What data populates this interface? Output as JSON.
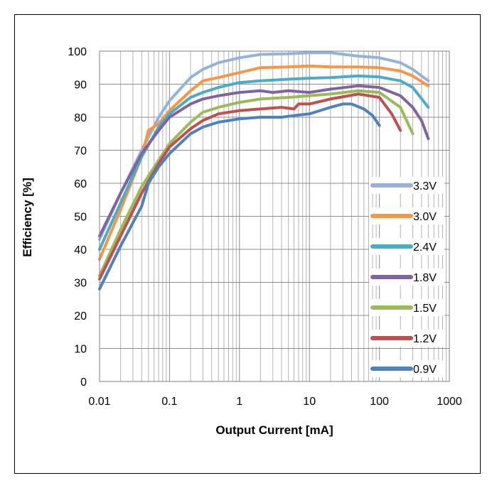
{
  "chart_data": {
    "type": "line",
    "title": "",
    "xlabel": "Output Current [mA]",
    "ylabel": "Efficiency [%]",
    "xscale": "log",
    "xlim": [
      0.01,
      1000
    ],
    "ylim": [
      0,
      100
    ],
    "x_ticks": [
      "0.01",
      "0.1",
      "1",
      "10",
      "100",
      "1000"
    ],
    "y_ticks": [
      "0",
      "10",
      "20",
      "30",
      "40",
      "50",
      "60",
      "70",
      "80",
      "90",
      "100"
    ],
    "grid": true,
    "legend_position": "right-inside",
    "series": [
      {
        "name": "3.3V",
        "color": "#95B3D7",
        "points": [
          [
            0.01,
            43
          ],
          [
            0.02,
            57
          ],
          [
            0.04,
            70
          ],
          [
            0.07,
            80
          ],
          [
            0.1,
            85
          ],
          [
            0.2,
            92
          ],
          [
            0.3,
            94.5
          ],
          [
            0.5,
            96.5
          ],
          [
            1,
            98
          ],
          [
            2,
            99
          ],
          [
            5,
            99.2
          ],
          [
            10,
            99.5
          ],
          [
            20,
            99.5
          ],
          [
            50,
            98.5
          ],
          [
            100,
            98
          ],
          [
            200,
            96.5
          ],
          [
            300,
            94.5
          ],
          [
            500,
            91
          ]
        ]
      },
      {
        "name": "3.0V",
        "color": "#F79646",
        "points": [
          [
            0.01,
            37
          ],
          [
            0.02,
            52
          ],
          [
            0.04,
            68
          ],
          [
            0.05,
            76
          ],
          [
            0.07,
            78
          ],
          [
            0.1,
            82
          ],
          [
            0.2,
            88
          ],
          [
            0.3,
            91
          ],
          [
            0.5,
            92
          ],
          [
            1,
            93.5
          ],
          [
            2,
            95
          ],
          [
            5,
            95.2
          ],
          [
            10,
            95.5
          ],
          [
            20,
            95.2
          ],
          [
            50,
            95.2
          ],
          [
            100,
            95
          ],
          [
            200,
            94
          ],
          [
            300,
            92.5
          ],
          [
            500,
            89.5
          ]
        ]
      },
      {
        "name": "2.4V",
        "color": "#4BACC6",
        "points": [
          [
            0.01,
            40
          ],
          [
            0.02,
            54
          ],
          [
            0.04,
            68
          ],
          [
            0.07,
            77
          ],
          [
            0.1,
            81
          ],
          [
            0.2,
            86
          ],
          [
            0.3,
            87.5
          ],
          [
            0.5,
            89
          ],
          [
            1,
            90.5
          ],
          [
            2,
            91
          ],
          [
            5,
            91.5
          ],
          [
            10,
            91.8
          ],
          [
            20,
            92
          ],
          [
            50,
            92.5
          ],
          [
            100,
            92.2
          ],
          [
            200,
            91
          ],
          [
            300,
            89
          ],
          [
            500,
            83
          ]
        ]
      },
      {
        "name": "1.8V",
        "color": "#8064A2",
        "points": [
          [
            0.01,
            44
          ],
          [
            0.02,
            57
          ],
          [
            0.04,
            69
          ],
          [
            0.07,
            76
          ],
          [
            0.1,
            80
          ],
          [
            0.2,
            84
          ],
          [
            0.3,
            85.5
          ],
          [
            0.5,
            86.5
          ],
          [
            1,
            87.5
          ],
          [
            2,
            88
          ],
          [
            3,
            87.5
          ],
          [
            5,
            88
          ],
          [
            10,
            87.5
          ],
          [
            20,
            88.5
          ],
          [
            50,
            89.5
          ],
          [
            100,
            89
          ],
          [
            200,
            86.5
          ],
          [
            300,
            83
          ],
          [
            400,
            79
          ],
          [
            500,
            73.5
          ]
        ]
      },
      {
        "name": "1.5V",
        "color": "#9BBB59",
        "points": [
          [
            0.01,
            32
          ],
          [
            0.02,
            46
          ],
          [
            0.04,
            59
          ],
          [
            0.07,
            67
          ],
          [
            0.1,
            72
          ],
          [
            0.2,
            78.5
          ],
          [
            0.3,
            81.5
          ],
          [
            0.5,
            83
          ],
          [
            1,
            84.5
          ],
          [
            2,
            85.5
          ],
          [
            5,
            86
          ],
          [
            10,
            86.5
          ],
          [
            20,
            87
          ],
          [
            50,
            88
          ],
          [
            100,
            87.5
          ],
          [
            200,
            83
          ],
          [
            300,
            75
          ]
        ]
      },
      {
        "name": "1.2V",
        "color": "#C0504D",
        "points": [
          [
            0.01,
            31
          ],
          [
            0.02,
            44
          ],
          [
            0.04,
            57
          ],
          [
            0.07,
            66
          ],
          [
            0.1,
            71
          ],
          [
            0.2,
            76.5
          ],
          [
            0.3,
            79
          ],
          [
            0.5,
            81
          ],
          [
            1,
            82
          ],
          [
            2,
            82.5
          ],
          [
            4,
            83
          ],
          [
            6,
            82.5
          ],
          [
            7,
            84
          ],
          [
            10,
            84
          ],
          [
            20,
            85.5
          ],
          [
            50,
            87
          ],
          [
            100,
            86
          ],
          [
            150,
            81
          ],
          [
            200,
            76
          ]
        ]
      },
      {
        "name": "0.9V",
        "color": "#4F81BD",
        "points": [
          [
            0.01,
            28
          ],
          [
            0.02,
            41
          ],
          [
            0.04,
            53
          ],
          [
            0.05,
            60
          ],
          [
            0.07,
            65
          ],
          [
            0.1,
            69
          ],
          [
            0.2,
            75
          ],
          [
            0.3,
            77
          ],
          [
            0.5,
            78.5
          ],
          [
            1,
            79.5
          ],
          [
            2,
            80
          ],
          [
            4,
            80
          ],
          [
            6,
            80.5
          ],
          [
            10,
            81
          ],
          [
            20,
            83
          ],
          [
            30,
            84
          ],
          [
            40,
            84
          ],
          [
            60,
            82.5
          ],
          [
            80,
            80.5
          ],
          [
            100,
            77.5
          ]
        ]
      }
    ]
  }
}
